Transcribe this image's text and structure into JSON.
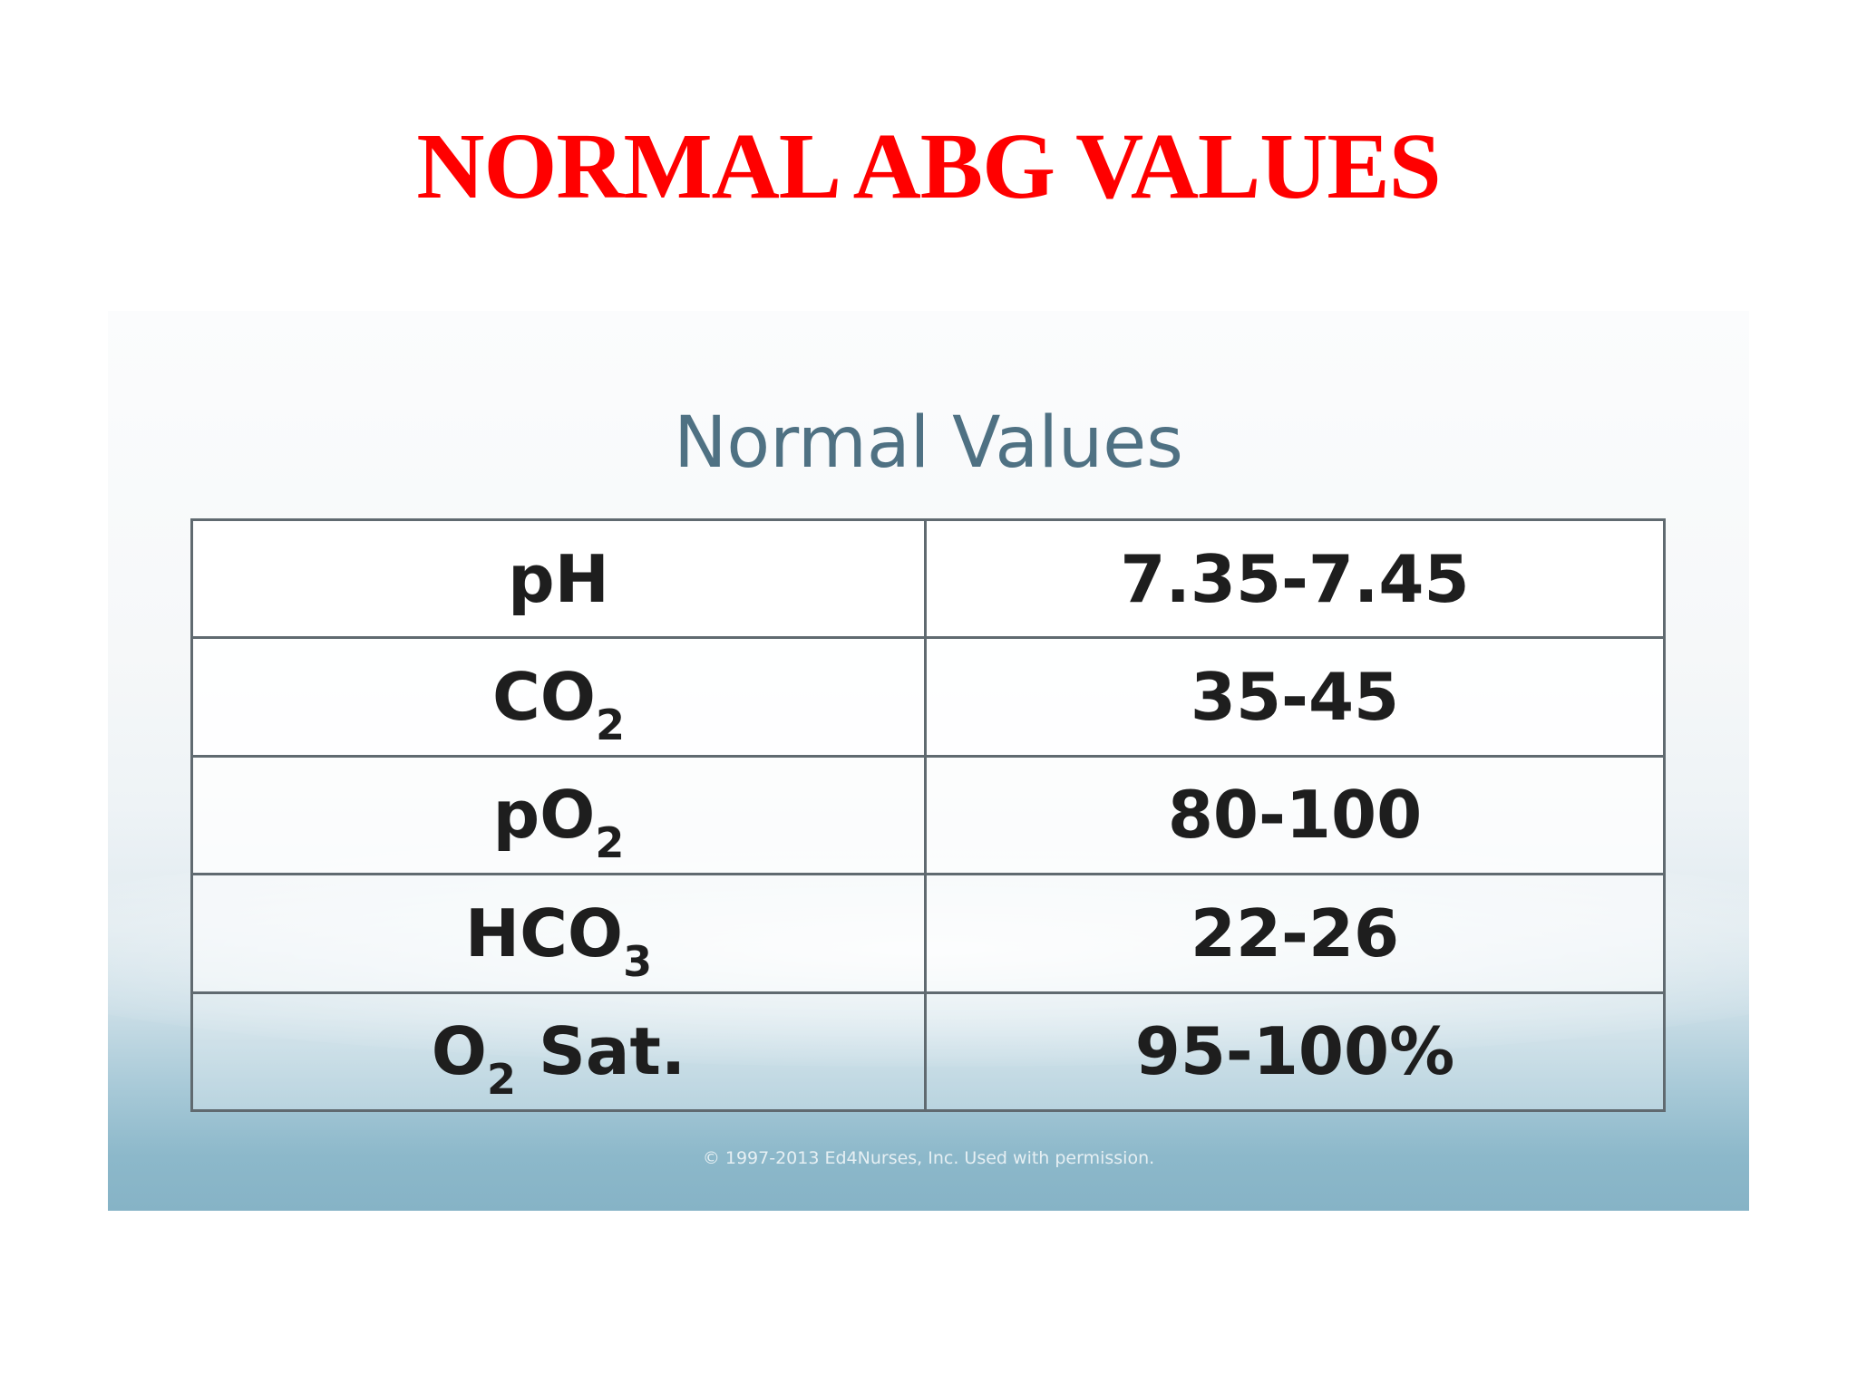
{
  "slide": {
    "title": "NORMAL ABG VALUES",
    "title_color": "#ff0000"
  },
  "figure": {
    "heading": "Normal Values",
    "heading_color": "#4f7183",
    "rows": [
      {
        "param_main": "pH",
        "param_sub": "",
        "param_suffix": "",
        "value": "7.35-7.45"
      },
      {
        "param_main": "CO",
        "param_sub": "2",
        "param_suffix": "",
        "value": "35-45"
      },
      {
        "param_main": "pO",
        "param_sub": "2",
        "param_suffix": "",
        "value": "80-100"
      },
      {
        "param_main": "HCO",
        "param_sub": "3",
        "param_suffix": "",
        "value": "22-26"
      },
      {
        "param_main": "O",
        "param_sub": "2",
        "param_suffix": " Sat.",
        "value": "95-100%"
      }
    ],
    "credit": "© 1997-2013 Ed4Nurses, Inc. Used with permission."
  }
}
